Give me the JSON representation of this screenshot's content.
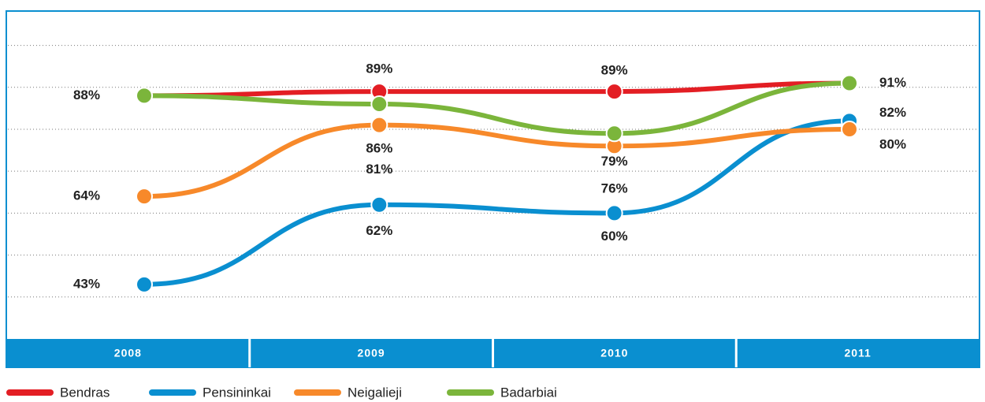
{
  "chart_data": {
    "type": "line",
    "categories": [
      "2008",
      "2009",
      "2010",
      "2011"
    ],
    "series": [
      {
        "name": "Bendras",
        "color": "#e31e24",
        "values": [
          88,
          89,
          89,
          91
        ],
        "value_labels": [
          "88%",
          "89%",
          "89%",
          null
        ]
      },
      {
        "name": "Pensininkai",
        "color": "#0a8fd0",
        "values": [
          43,
          62,
          60,
          82
        ],
        "value_labels": [
          "43%",
          "62%",
          "60%",
          "82%"
        ]
      },
      {
        "name": "Neigalieji",
        "color": "#f7892a",
        "values": [
          64,
          81,
          76,
          80
        ],
        "value_labels": [
          "64%",
          "81%",
          "76%",
          "80%"
        ]
      },
      {
        "name": "Badarbiai",
        "color": "#7bb53b",
        "values": [
          88,
          86,
          79,
          91
        ],
        "value_labels": [
          null,
          "86%",
          "79%",
          "91%"
        ]
      }
    ],
    "ylim": [
      30,
      108
    ],
    "yticks": [
      40,
      50,
      60,
      70,
      80,
      90,
      100
    ],
    "grid": true
  }
}
